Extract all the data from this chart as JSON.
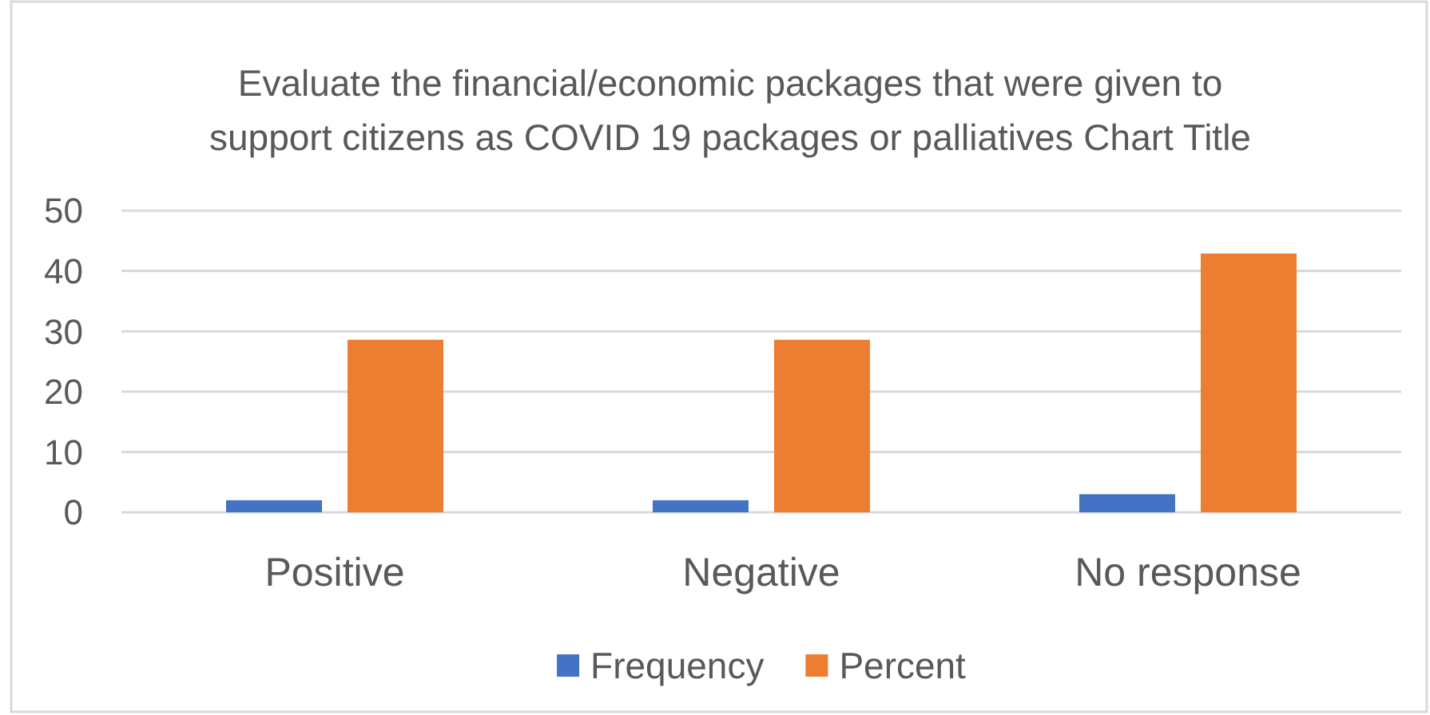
{
  "chart_data": {
    "type": "bar",
    "title": "Evaluate the financial/economic packages that were given to support citizens as COVID 19 packages or palliatives Chart Title",
    "categories": [
      "Positive",
      "Negative",
      "No response"
    ],
    "series": [
      {
        "name": "Frequency",
        "color": "#4472c4",
        "values": [
          2,
          2,
          3
        ]
      },
      {
        "name": "Percent",
        "color": "#ed7d31",
        "values": [
          28.6,
          28.6,
          42.9
        ]
      }
    ],
    "ylim": [
      0,
      50
    ],
    "yticks": [
      0,
      10,
      20,
      30,
      40,
      50
    ],
    "grid": "y",
    "legend": "bottom"
  }
}
